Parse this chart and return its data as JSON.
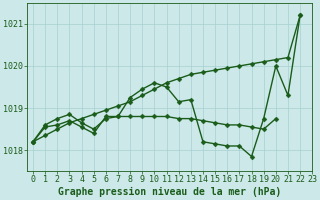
{
  "title": "Graphe pression niveau de la mer (hPa)",
  "bg_color": "#cce8e8",
  "grid_color": "#a8d0d0",
  "line_color": "#1a5c1a",
  "xlim": [
    -0.5,
    23
  ],
  "ylim": [
    1017.5,
    1021.5
  ],
  "yticks": [
    1018,
    1019,
    1020,
    1021
  ],
  "xticks": [
    0,
    1,
    2,
    3,
    4,
    5,
    6,
    7,
    8,
    9,
    10,
    11,
    12,
    13,
    14,
    15,
    16,
    17,
    18,
    19,
    20,
    21,
    22,
    23
  ],
  "line_width": 1.0,
  "marker_size": 2.5,
  "tick_fontsize": 6,
  "title_fontsize": 7,
  "series": [
    {
      "x": [
        0,
        1,
        2,
        3,
        4,
        5,
        6,
        7,
        8,
        9,
        10,
        11,
        12,
        13,
        14,
        15,
        16,
        17,
        18,
        19,
        20,
        21,
        22
      ],
      "y": [
        1018.2,
        1018.35,
        1018.5,
        1018.65,
        1018.75,
        1018.85,
        1018.95,
        1019.05,
        1019.15,
        1019.3,
        1019.45,
        1019.6,
        1019.7,
        1019.8,
        1019.85,
        1019.9,
        1019.95,
        1020.0,
        1020.05,
        1020.1,
        1020.15,
        1020.2,
        1021.2
      ]
    },
    {
      "x": [
        0,
        1,
        2,
        3,
        4,
        5,
        6,
        7,
        8,
        9,
        10,
        11,
        12,
        13,
        14,
        15,
        16,
        17,
        18,
        19,
        20,
        21,
        22
      ],
      "y": [
        1018.2,
        1018.6,
        1018.75,
        1018.85,
        1018.65,
        1018.5,
        1018.75,
        1018.8,
        1019.25,
        1019.45,
        1019.6,
        1019.5,
        1019.15,
        1019.2,
        1018.2,
        1018.15,
        1018.1,
        1018.1,
        1017.85,
        1018.75,
        1020.0,
        1019.3,
        1021.2
      ]
    },
    {
      "x": [
        0,
        1,
        2,
        3,
        4,
        5,
        6,
        7,
        8,
        9,
        10,
        11,
        12,
        13,
        14,
        15,
        16,
        17,
        18,
        19,
        20
      ],
      "y": [
        1018.2,
        1018.55,
        1018.6,
        1018.7,
        1018.55,
        1018.4,
        1018.8,
        1018.8,
        1018.8,
        1018.8,
        1018.8,
        1018.8,
        1018.75,
        1018.75,
        1018.7,
        1018.65,
        1018.6,
        1018.6,
        1018.55,
        1018.5,
        1018.75
      ]
    }
  ]
}
